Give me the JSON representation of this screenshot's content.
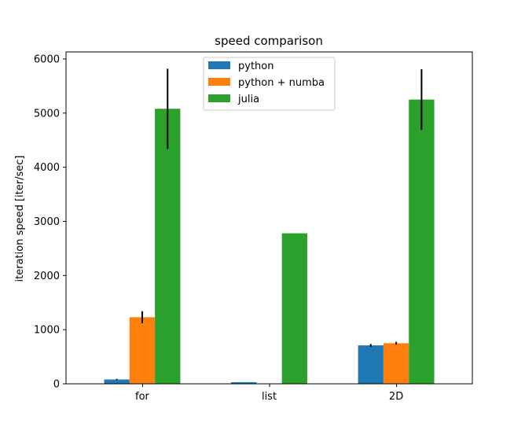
{
  "chart_data": {
    "type": "bar",
    "title": "speed comparison",
    "xlabel": "",
    "ylabel": "iteration speed [iter/sec]",
    "categories": [
      "for",
      "list",
      "2D"
    ],
    "ylim": [
      0,
      6130
    ],
    "yticks": [
      0,
      1000,
      2000,
      3000,
      4000,
      5000,
      6000
    ],
    "grid": false,
    "legend_position": "top-center",
    "series": [
      {
        "name": "python",
        "color": "#1f77b4",
        "values": [
          80,
          30,
          710
        ],
        "errors": [
          10,
          0,
          25
        ]
      },
      {
        "name": "python + numba",
        "color": "#ff7f0e",
        "values": [
          1230,
          0,
          750
        ],
        "errors": [
          110,
          0,
          25
        ]
      },
      {
        "name": "julia",
        "color": "#2ca02c",
        "values": [
          5080,
          2780,
          5250
        ],
        "errors": [
          740,
          0,
          560
        ]
      }
    ]
  }
}
